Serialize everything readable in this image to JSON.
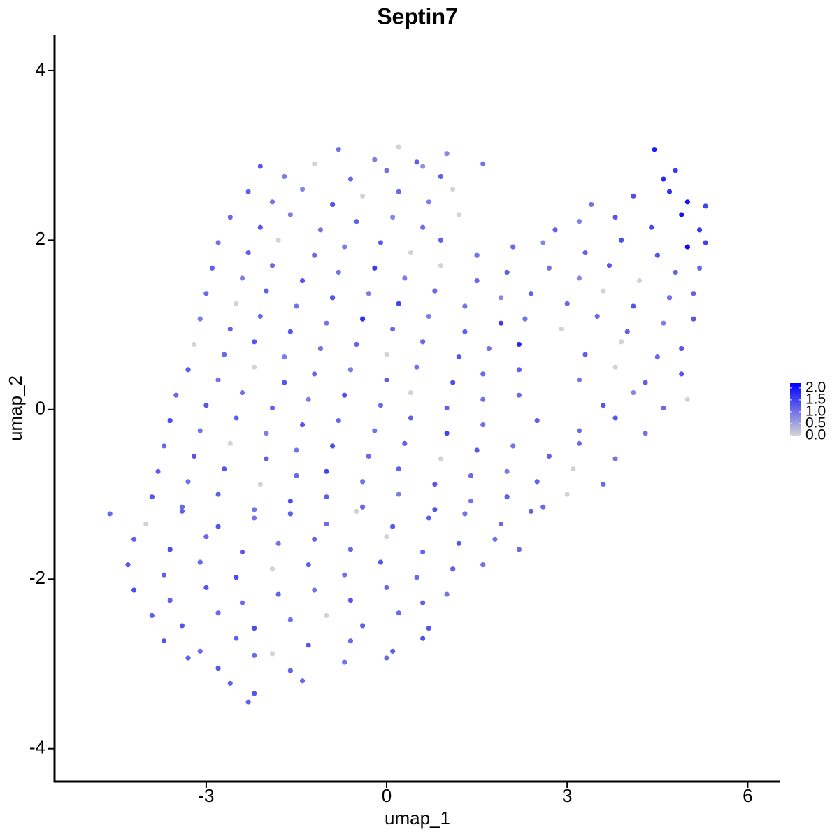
{
  "chart_data": {
    "type": "scatter",
    "title": "Septin7",
    "x_label": "umap_1",
    "y_label": "umap_2",
    "xlim": [
      -5.52,
      6.53
    ],
    "ylim": [
      -4.39,
      4.42
    ],
    "xticks": [
      -3,
      0,
      3,
      6
    ],
    "yticks": [
      -4,
      -2,
      0,
      2,
      4
    ],
    "colors": [
      "#d3d3d3",
      "#0000ff"
    ],
    "colorbar": {
      "lim": [
        0,
        2.2
      ],
      "ticks": [
        {
          "value": 0,
          "label": "0.0"
        },
        {
          "value": 0.5,
          "label": "0.5"
        },
        {
          "value": 1,
          "label": "1.0"
        },
        {
          "value": 1.5,
          "label": "1.5"
        },
        {
          "value": 2,
          "label": "2.0"
        }
      ]
    },
    "x": [
      -0.8,
      -0.2,
      0.2,
      0.5,
      1.0,
      4.45,
      -2.1,
      -1.7,
      -1.2,
      -0.6,
      0.0,
      0.6,
      0.9,
      1.6,
      4.6,
      4.8,
      -2.3,
      -1.9,
      -1.4,
      -0.9,
      -0.4,
      0.2,
      0.7,
      1.1,
      3.4,
      4.1,
      4.7,
      5.0,
      5.3,
      -2.6,
      -2.1,
      -1.6,
      -1.1,
      -0.5,
      0.1,
      0.6,
      1.2,
      2.8,
      3.2,
      3.8,
      4.4,
      4.9,
      5.2,
      -2.8,
      -2.3,
      -1.8,
      -1.2,
      -0.7,
      -0.1,
      0.4,
      0.9,
      1.5,
      2.1,
      2.6,
      3.3,
      3.9,
      4.5,
      5.0,
      5.3,
      -2.9,
      -2.4,
      -1.9,
      -1.4,
      -0.8,
      -0.2,
      0.3,
      0.9,
      1.5,
      2.0,
      2.7,
      3.2,
      3.7,
      4.2,
      4.8,
      5.2,
      -3.0,
      -2.5,
      -2.0,
      -1.5,
      -0.9,
      -0.3,
      0.2,
      0.8,
      1.3,
      1.9,
      2.4,
      3.0,
      3.6,
      4.1,
      4.7,
      5.1,
      -3.1,
      -2.6,
      -2.1,
      -1.6,
      -1.0,
      -0.4,
      0.1,
      0.7,
      1.3,
      1.9,
      2.3,
      2.9,
      3.5,
      4.0,
      4.6,
      5.1,
      -3.2,
      -2.7,
      -2.2,
      -1.7,
      -1.1,
      -0.5,
      0.0,
      0.6,
      1.2,
      1.7,
      2.2,
      3.3,
      3.9,
      4.5,
      4.9,
      -3.3,
      -2.8,
      -2.2,
      -1.7,
      -1.2,
      -0.6,
      0.0,
      0.5,
      1.1,
      1.6,
      2.2,
      3.2,
      3.8,
      4.3,
      4.9,
      -3.5,
      -3.0,
      -2.4,
      -1.9,
      -1.3,
      -0.7,
      -0.1,
      0.4,
      1.0,
      1.6,
      2.2,
      3.6,
      4.1,
      4.6,
      5.0,
      -3.6,
      -3.1,
      -2.5,
      -2.0,
      -1.4,
      -0.8,
      -0.2,
      0.4,
      1.0,
      1.6,
      2.5,
      3.2,
      3.8,
      4.3,
      -3.7,
      -3.2,
      -2.6,
      -2.0,
      -1.5,
      -0.9,
      -0.3,
      0.3,
      0.9,
      1.5,
      2.1,
      2.7,
      3.2,
      3.8,
      -3.8,
      -3.3,
      -2.7,
      -2.1,
      -1.5,
      -1.0,
      -0.4,
      0.2,
      0.8,
      1.4,
      2.0,
      2.5,
      3.1,
      3.6,
      -3.9,
      -3.4,
      -2.8,
      -2.2,
      -1.6,
      -1.0,
      -0.4,
      0.2,
      0.8,
      1.4,
      2.0,
      2.6,
      3.0,
      -4.6,
      -4.0,
      -3.4,
      -2.8,
      -2.2,
      -1.6,
      -1.0,
      -0.5,
      0.1,
      0.7,
      1.3,
      1.9,
      2.4,
      -4.2,
      -3.6,
      -3.0,
      -2.4,
      -1.8,
      -1.2,
      -0.6,
      0.0,
      0.6,
      1.2,
      1.8,
      2.2,
      -4.3,
      -3.7,
      -3.1,
      -2.5,
      -1.9,
      -1.3,
      -0.7,
      -0.1,
      0.5,
      1.1,
      1.6,
      -4.2,
      -3.6,
      -3.0,
      -2.4,
      -1.8,
      -1.2,
      -0.6,
      0.0,
      0.6,
      1.0,
      -3.9,
      -3.4,
      -2.8,
      -2.2,
      -1.6,
      -1.0,
      -0.4,
      0.2,
      0.7,
      -3.7,
      -3.1,
      -2.5,
      -1.9,
      -1.3,
      -0.6,
      0.1,
      0.6,
      -3.3,
      -2.8,
      -2.2,
      -1.6,
      -0.7,
      0.0,
      -2.6,
      -2.2,
      -1.4,
      -2.3
    ],
    "y": [
      3.07,
      2.95,
      3.1,
      2.92,
      3.02,
      3.07,
      2.87,
      2.75,
      2.9,
      2.72,
      2.82,
      2.87,
      2.75,
      2.9,
      2.72,
      2.82,
      2.57,
      2.45,
      2.6,
      2.42,
      2.52,
      2.57,
      2.45,
      2.6,
      2.42,
      2.52,
      2.57,
      2.45,
      2.4,
      2.27,
      2.15,
      2.3,
      2.12,
      2.22,
      2.27,
      2.15,
      2.3,
      2.12,
      2.22,
      2.27,
      2.15,
      2.3,
      2.12,
      1.97,
      1.85,
      2.0,
      1.82,
      1.92,
      1.97,
      1.85,
      2.0,
      1.82,
      1.92,
      1.97,
      1.85,
      2.0,
      1.82,
      1.92,
      1.97,
      1.67,
      1.55,
      1.7,
      1.52,
      1.62,
      1.67,
      1.55,
      1.7,
      1.52,
      1.62,
      1.67,
      1.55,
      1.7,
      1.52,
      1.62,
      1.67,
      1.37,
      1.25,
      1.4,
      1.22,
      1.32,
      1.37,
      1.25,
      1.4,
      1.22,
      1.32,
      1.37,
      1.25,
      1.4,
      1.22,
      1.32,
      1.37,
      1.07,
      0.95,
      1.1,
      0.92,
      1.02,
      1.07,
      0.95,
      1.1,
      0.92,
      1.02,
      1.07,
      0.95,
      1.1,
      0.92,
      1.02,
      1.07,
      0.77,
      0.65,
      0.8,
      0.62,
      0.72,
      0.77,
      0.65,
      0.8,
      0.62,
      0.72,
      0.77,
      0.65,
      0.8,
      0.62,
      0.72,
      0.47,
      0.35,
      0.5,
      0.32,
      0.42,
      0.47,
      0.35,
      0.5,
      0.32,
      0.42,
      0.47,
      0.35,
      0.5,
      0.32,
      0.42,
      0.17,
      0.05,
      0.2,
      0.02,
      0.12,
      0.17,
      0.05,
      0.2,
      0.02,
      0.12,
      0.17,
      0.05,
      0.2,
      0.02,
      0.12,
      -0.13,
      -0.25,
      -0.1,
      -0.28,
      -0.18,
      -0.13,
      -0.25,
      -0.1,
      -0.28,
      -0.18,
      -0.13,
      -0.25,
      -0.1,
      -0.28,
      -0.43,
      -0.55,
      -0.4,
      -0.58,
      -0.48,
      -0.43,
      -0.55,
      -0.4,
      -0.58,
      -0.48,
      -0.43,
      -0.55,
      -0.4,
      -0.58,
      -0.73,
      -0.85,
      -0.7,
      -0.88,
      -0.78,
      -0.73,
      -0.85,
      -0.7,
      -0.88,
      -0.78,
      -0.73,
      -0.85,
      -0.7,
      -0.88,
      -1.03,
      -1.15,
      -1.0,
      -1.18,
      -1.08,
      -1.03,
      -1.15,
      -1.0,
      -1.18,
      -1.08,
      -1.03,
      -1.15,
      -1.0,
      -1.23,
      -1.35,
      -1.2,
      -1.38,
      -1.28,
      -1.23,
      -1.35,
      -1.2,
      -1.38,
      -1.28,
      -1.23,
      -1.35,
      -1.2,
      -1.53,
      -1.65,
      -1.5,
      -1.68,
      -1.58,
      -1.53,
      -1.65,
      -1.5,
      -1.68,
      -1.58,
      -1.53,
      -1.65,
      -1.83,
      -1.95,
      -1.8,
      -1.98,
      -1.88,
      -1.83,
      -1.95,
      -1.8,
      -1.98,
      -1.88,
      -1.83,
      -2.13,
      -2.25,
      -2.1,
      -2.28,
      -2.18,
      -2.13,
      -2.25,
      -2.1,
      -2.28,
      -2.18,
      -2.43,
      -2.55,
      -2.4,
      -2.58,
      -2.48,
      -2.43,
      -2.55,
      -2.4,
      -2.58,
      -2.73,
      -2.85,
      -2.7,
      -2.88,
      -2.78,
      -2.73,
      -2.85,
      -2.7,
      -2.93,
      -3.05,
      -2.9,
      -3.08,
      -2.98,
      -2.93,
      -3.23,
      -3.35,
      -3.2,
      -3.45
    ],
    "values": [
      1.0,
      0.9,
      0,
      1.2,
      0.8,
      1.9,
      1.3,
      0.9,
      0,
      1.1,
      1.0,
      0.7,
      1.2,
      1.0,
      1.8,
      1.6,
      1.2,
      1.0,
      0.8,
      1.3,
      0,
      1.1,
      0.9,
      0,
      1.0,
      1.4,
      1.7,
      2.0,
      1.5,
      1.1,
      1.3,
      0.9,
      1.0,
      1.2,
      0.8,
      1.1,
      0,
      1.2,
      0.9,
      1.3,
      1.5,
      2.0,
      1.6,
      1.0,
      1.2,
      0,
      1.1,
      0.9,
      1.3,
      0,
      1.2,
      1.0,
      1.1,
      0.8,
      1.2,
      1.4,
      1.3,
      2.1,
      1.5,
      1.2,
      0.9,
      1.1,
      1.3,
      1.0,
      1.6,
      0.9,
      0,
      1.1,
      1.2,
      1.0,
      0.8,
      1.3,
      0,
      1.2,
      1.1,
      1.1,
      0,
      1.2,
      1.0,
      1.3,
      0.9,
      1.5,
      1.1,
      1.0,
      0.8,
      1.2,
      1.1,
      0,
      1.3,
      1.0,
      1.2,
      0.9,
      1.2,
      1.1,
      1.3,
      1.0,
      1.7,
      1.1,
      0.9,
      1.2,
      1.6,
      1.0,
      0,
      1.1,
      1.2,
      0.9,
      1.3,
      0,
      1.1,
      1.3,
      0.9,
      1.0,
      1.2,
      0,
      1.1,
      1.3,
      1.0,
      1.8,
      1.2,
      0,
      1.1,
      1.3,
      1.2,
      1.0,
      0,
      1.3,
      1.1,
      0.9,
      1.2,
      1.0,
      1.4,
      1.1,
      1.2,
      1.0,
      0,
      1.2,
      1.3,
      1.1,
      1.3,
      1.0,
      1.2,
      0.9,
      1.4,
      1.1,
      0,
      1.2,
      1.0,
      1.1,
      1.3,
      0.8,
      1.1,
      0,
      1.4,
      1.0,
      1.2,
      0.9,
      1.3,
      1.1,
      1.0,
      1.2,
      1.5,
      1.0,
      1.2,
      1.1,
      1.3,
      1.0,
      1.1,
      1.3,
      0,
      1.2,
      1.0,
      1.4,
      1.1,
      1.2,
      0,
      1.3,
      1.0,
      1.2,
      1.1,
      1.0,
      1.2,
      1.0,
      1.3,
      0,
      1.1,
      1.5,
      1.0,
      1.2,
      1.3,
      1.1,
      0.9,
      1.2,
      0,
      1.1,
      1.3,
      1.1,
      1.2,
      1.0,
      1.4,
      1.2,
      1.1,
      0.9,
      1.3,
      1.0,
      1.2,
      1.1,
      0,
      1.1,
      0,
      1.2,
      1.3,
      1.0,
      1.2,
      1.1,
      0,
      1.3,
      1.2,
      1.0,
      1.1,
      1.2,
      1.2,
      1.4,
      1.1,
      1.3,
      1.0,
      1.2,
      1.1,
      0,
      1.2,
      1.3,
      1.0,
      1.1,
      1.3,
      1.2,
      1.1,
      1.4,
      0,
      1.2,
      1.0,
      1.3,
      1.1,
      1.2,
      1.0,
      1.4,
      1.2,
      1.3,
      1.1,
      1.2,
      1.0,
      1.3,
      1.1,
      1.2,
      1.0,
      1.2,
      1.3,
      1.1,
      1.4,
      1.0,
      0,
      1.2,
      1.1,
      1.3,
      1.3,
      1.1,
      1.2,
      0,
      1.3,
      1.1,
      1.2,
      1.4,
      1.2,
      1.3,
      1.1,
      1.2,
      1.0,
      1.1,
      1.2,
      1.3,
      1.1,
      1.2
    ]
  }
}
